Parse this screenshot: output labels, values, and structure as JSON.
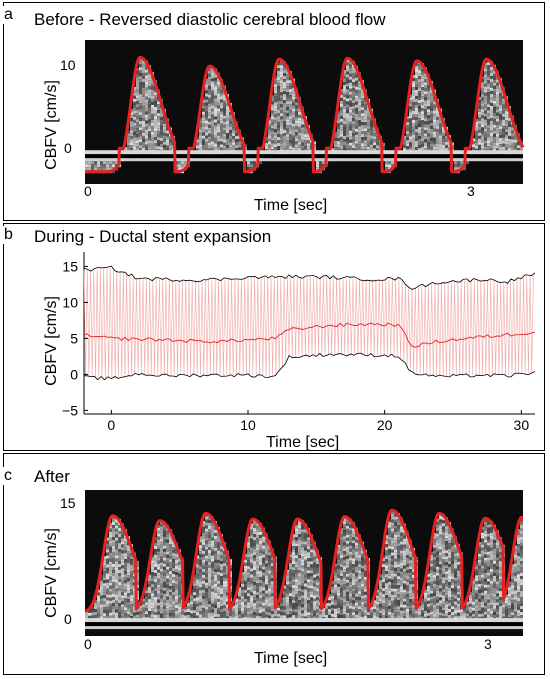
{
  "panels": {
    "a": {
      "letter": "a",
      "title": "Before - Reversed diastolic cerebral blood flow"
    },
    "b": {
      "letter": "b",
      "title": "During - Ductal stent expansion"
    },
    "c": {
      "letter": "c",
      "title": "After"
    }
  },
  "chart_data": [
    {
      "type": "line",
      "panel": "a",
      "title": "Before - Reversed diastolic cerebral blood flow",
      "xlabel": "Time [sec]",
      "ylabel": "CBFV [cm/s]",
      "xticks": [
        0,
        3
      ],
      "yticks": [
        0,
        10
      ],
      "xlim": [
        -0.04,
        3.3
      ],
      "ylim": [
        -3.3,
        13.2
      ],
      "background": "Doppler spectrogram (grayscale)",
      "series": [
        {
          "color": "#e32222",
          "peak_times": [
            0.38,
            0.91,
            1.44,
            1.96,
            2.49,
            3.02
          ],
          "peak_values": [
            11.2,
            10.2,
            11.0,
            11.1,
            10.8,
            11.0
          ],
          "trough_value": -1.9
        }
      ]
    },
    {
      "type": "line",
      "panel": "b",
      "title": "During - Ductal stent expansion",
      "xlabel": "Time [sec]",
      "ylabel": "CBFV [cm/s]",
      "xticks": [
        0,
        10,
        20,
        30
      ],
      "yticks": [
        -5,
        0,
        5,
        10,
        15
      ],
      "xlim": [
        -2,
        31
      ],
      "ylim": [
        -5.5,
        17
      ],
      "series": [
        {
          "role": "maximum",
          "color": "#000000",
          "x": [
            -2,
            0,
            2,
            4,
            6,
            8,
            10,
            12,
            13,
            16,
            19,
            21,
            22,
            24,
            27,
            29,
            31
          ],
          "y": [
            14.5,
            14.8,
            13.3,
            13.2,
            13.1,
            13.2,
            13.5,
            13.5,
            13.6,
            13.5,
            13.2,
            13.3,
            12.0,
            12.8,
            13.2,
            12.9,
            14.0
          ]
        },
        {
          "role": "mean",
          "color": "#e32222",
          "x": [
            -2,
            0,
            2,
            4,
            6,
            8,
            10,
            12,
            13,
            16,
            19,
            21,
            22,
            24,
            27,
            29,
            31
          ],
          "y": [
            5.4,
            5.0,
            4.9,
            4.8,
            4.6,
            4.6,
            4.8,
            5.0,
            6.2,
            6.8,
            7.0,
            6.9,
            3.9,
            4.6,
            5.2,
            5.5,
            5.9
          ]
        },
        {
          "role": "minimum",
          "color": "#000000",
          "x": [
            -2,
            0,
            2,
            4,
            6,
            8,
            10,
            12,
            13,
            16,
            19,
            21,
            22,
            24,
            27,
            29,
            31
          ],
          "y": [
            -0.4,
            -0.6,
            0.1,
            -0.2,
            -0.1,
            -0.1,
            -0.1,
            -0.3,
            2.4,
            2.8,
            2.7,
            2.6,
            0.2,
            -0.3,
            -0.1,
            -0.2,
            0.3
          ]
        }
      ]
    },
    {
      "type": "line",
      "panel": "c",
      "title": "After",
      "xlabel": "Time [sec]",
      "ylabel": "CBFV [cm/s]",
      "xticks": [
        0,
        3
      ],
      "yticks": [
        0,
        15
      ],
      "xlim": [
        -0.04,
        3.3
      ],
      "ylim": [
        -1.6,
        16.5
      ],
      "background": "Doppler spectrogram (grayscale)",
      "series": [
        {
          "color": "#e32222",
          "peak_times": [
            0.17,
            0.53,
            0.88,
            1.24,
            1.58,
            1.94,
            2.3,
            2.66,
            3.01,
            3.29
          ],
          "peak_values": [
            13.3,
            12.7,
            13.6,
            12.9,
            12.9,
            13.2,
            14.0,
            13.6,
            13.0,
            13.1
          ],
          "trough_value": 1.3
        }
      ]
    }
  ]
}
